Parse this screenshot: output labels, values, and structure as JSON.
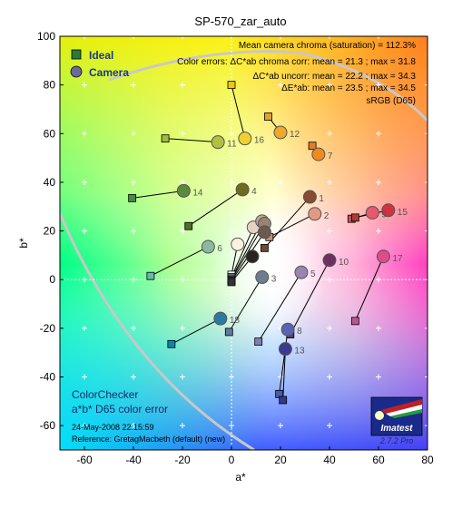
{
  "chart_data": {
    "type": "scatter",
    "title": "SP-570_zar_auto",
    "xlabel": "a*",
    "ylabel": "b*",
    "xlim": [
      -70,
      80
    ],
    "ylim": [
      -70,
      100
    ],
    "xticks": [
      "-60",
      "-40",
      "-20",
      "0",
      "20",
      "40",
      "60",
      "80"
    ],
    "yticks": [
      "-60",
      "-40",
      "-20",
      "0",
      "20",
      "40",
      "60",
      "80",
      "100"
    ],
    "grid": "on (plus markers)",
    "legend_position": "top-left",
    "legend": [
      "Ideal",
      "Camera"
    ],
    "annotations": [
      "Mean camera chroma (saturation) = 112.3%",
      "Color errors:  ΔC*ab chroma corr:  mean = 21.3 ;  max = 31.8",
      "ΔC*ab uncorr:  mean = 22.2 ;  max = 34.3",
      "ΔE*ab:  mean = 23.5 ;  max = 34.5",
      "sRGB (D65)"
    ],
    "bottom_text": [
      "ColorChecker",
      "a*b* D65 color error",
      "24-May-2008 22:15:59",
      "Reference: GretagMacbeth (default) (new)"
    ],
    "logo_text": "Imatest",
    "version": "2.7.2  Pro",
    "series": [
      {
        "name": "Ideal",
        "marker": "square",
        "points": [
          {
            "id": "1",
            "a": 13.5,
            "b": 13.0,
            "color": "#734837"
          },
          {
            "id": "2",
            "a": 15.5,
            "b": 17.5,
            "color": "#c0917c"
          },
          {
            "id": "3",
            "a": -1.0,
            "b": -21.5,
            "color": "#5f7a9e"
          },
          {
            "id": "4",
            "a": -17.5,
            "b": 22.0,
            "color": "#556a2e"
          },
          {
            "id": "5",
            "a": 11.0,
            "b": -25.5,
            "color": "#8080b0"
          },
          {
            "id": "6",
            "a": -33.0,
            "b": 1.5,
            "color": "#62bca6"
          },
          {
            "id": "7",
            "a": 33.0,
            "b": 55.0,
            "color": "#e17f26"
          },
          {
            "id": "8",
            "a": 19.5,
            "b": -47.0,
            "color": "#4a5baa"
          },
          {
            "id": "9",
            "a": 49.0,
            "b": 25.0,
            "color": "#c25463"
          },
          {
            "id": "10",
            "a": 24.0,
            "b": -22.5,
            "color": "#5d3c6d"
          },
          {
            "id": "11",
            "a": -27.0,
            "b": 58.0,
            "color": "#a0bc3c"
          },
          {
            "id": "12",
            "a": 15.0,
            "b": 67.0,
            "color": "#e1a32b"
          },
          {
            "id": "13",
            "a": 21.0,
            "b": -49.5,
            "color": "#32398f"
          },
          {
            "id": "14",
            "a": -40.5,
            "b": 33.5,
            "color": "#448c45"
          },
          {
            "id": "15",
            "a": 50.5,
            "b": 25.5,
            "color": "#b33a32"
          },
          {
            "id": "16",
            "a": 0.0,
            "b": 80.0,
            "color": "#eec71b"
          },
          {
            "id": "17",
            "a": 50.5,
            "b": -17.0,
            "color": "#bb5696"
          },
          {
            "id": "18",
            "a": -24.5,
            "b": -26.5,
            "color": "#0887a7"
          },
          {
            "id": "19",
            "a": 0.0,
            "b": 2.0,
            "color": "#f3f3f2"
          },
          {
            "id": "20",
            "a": 0.0,
            "b": 1.0,
            "color": "#c8c8c8"
          },
          {
            "id": "21",
            "a": 0.0,
            "b": 0.5,
            "color": "#a0a0a0"
          },
          {
            "id": "22",
            "a": 0.0,
            "b": 0.0,
            "color": "#7a7a79"
          },
          {
            "id": "23",
            "a": 0.0,
            "b": -0.5,
            "color": "#555555"
          },
          {
            "id": "24",
            "a": 0.0,
            "b": -1.0,
            "color": "#343434"
          }
        ]
      },
      {
        "name": "Camera",
        "marker": "circle",
        "points": [
          {
            "id": "1",
            "a": 32.0,
            "b": 34.0,
            "color": "#8a4a30"
          },
          {
            "id": "2",
            "a": 34.0,
            "b": 27.0,
            "color": "#e39a82"
          },
          {
            "id": "3",
            "a": 12.5,
            "b": 1.0,
            "color": "#6e7e90"
          },
          {
            "id": "4",
            "a": 4.5,
            "b": 37.0,
            "color": "#6e6a20"
          },
          {
            "id": "5",
            "a": 28.5,
            "b": 3.0,
            "color": "#9a84b0"
          },
          {
            "id": "6",
            "a": -9.5,
            "b": 13.5,
            "color": "#8ab8a0"
          },
          {
            "id": "7",
            "a": 35.5,
            "b": 51.5,
            "color": "#f08a20"
          },
          {
            "id": "8",
            "a": 23.0,
            "b": -20.5,
            "color": "#5a62b2"
          },
          {
            "id": "9",
            "a": 57.5,
            "b": 27.5,
            "color": "#e65870"
          },
          {
            "id": "10",
            "a": 40.0,
            "b": 8.0,
            "color": "#6e3060"
          },
          {
            "id": "11",
            "a": -5.5,
            "b": 56.5,
            "color": "#b0c040"
          },
          {
            "id": "12",
            "a": 20.0,
            "b": 60.5,
            "color": "#f0a828"
          },
          {
            "id": "13",
            "a": 22.0,
            "b": -28.5,
            "color": "#3a3a90"
          },
          {
            "id": "14",
            "a": -19.5,
            "b": 36.5,
            "color": "#5a8a3a"
          },
          {
            "id": "15",
            "a": 64.0,
            "b": 28.5,
            "color": "#d43040"
          },
          {
            "id": "16",
            "a": 5.5,
            "b": 58.0,
            "color": "#f0d030"
          },
          {
            "id": "17",
            "a": 62.0,
            "b": 9.5,
            "color": "#e04a8a"
          },
          {
            "id": "18",
            "a": -4.5,
            "b": -16.0,
            "color": "#2a7aa0"
          },
          {
            "id": "19",
            "a": 2.5,
            "b": 14.5,
            "color": "#fff0e0"
          },
          {
            "id": "20",
            "a": 9.0,
            "b": 21.5,
            "color": "#e6d2c0"
          },
          {
            "id": "21",
            "a": 12.5,
            "b": 24.0,
            "color": "#c0a890"
          },
          {
            "id": "22",
            "a": 13.5,
            "b": 23.0,
            "color": "#988472"
          },
          {
            "id": "23",
            "a": 13.5,
            "b": 19.5,
            "color": "#6c5a4c"
          },
          {
            "id": "24",
            "a": 8.5,
            "b": 9.5,
            "color": "#2a2420"
          }
        ]
      }
    ]
  },
  "colors": {
    "legend_ideal": "#2b7a3a",
    "legend_camera": "#6b6b9a",
    "logo_background": "#1a2a8a"
  }
}
